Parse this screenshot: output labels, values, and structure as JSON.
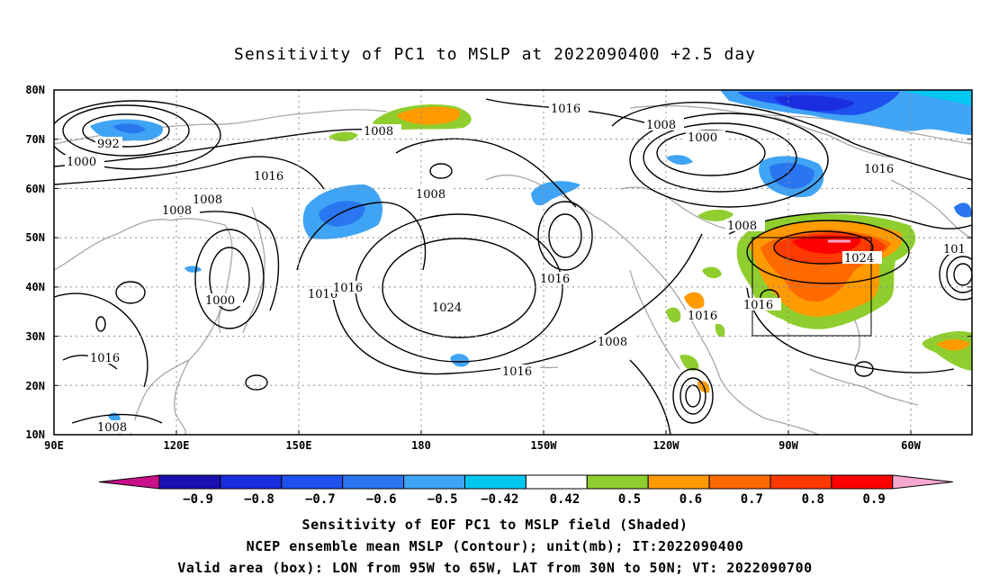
{
  "title": "Sensitivity of PC1 to MSLP at 2022090400 +2.5 day",
  "lat_labels": [
    "80N",
    "70N",
    "60N",
    "50N",
    "40N",
    "30N",
    "20N",
    "10N"
  ],
  "lon_labels": [
    "90E",
    "120E",
    "150E",
    "180",
    "150W",
    "120W",
    "90W",
    "60W"
  ],
  "contour_labels": [
    "992",
    "1000",
    "1008",
    "1008",
    "1016",
    "1008",
    "1016",
    "1000",
    "1016",
    "1016",
    "1024",
    "1008",
    "1000",
    "1016",
    "1008",
    "1016",
    "1024",
    "1016",
    "1016",
    "1016",
    "1008",
    "1008",
    "1016",
    "101"
  ],
  "colorbar": {
    "labels": [
      "-0.9",
      "-0.8",
      "-0.7",
      "-0.6",
      "-0.5",
      "-0.42",
      "0.42",
      "0.5",
      "0.6",
      "0.7",
      "0.8",
      "0.9"
    ],
    "colors": [
      "#1a0fb0",
      "#1a2ee0",
      "#1f50f0",
      "#2a76f0",
      "#3fa4f5",
      "#00c8f0",
      "#ffffff",
      "#8fce2e",
      "#ff9a00",
      "#ff6a00",
      "#ff3a00",
      "#ff0000"
    ],
    "under_color": "#c8108a",
    "over_color": "#f8a8d0"
  },
  "footer": [
    "Sensitivity of EOF PC1 to MSLP field (Shaded)",
    "NCEP ensemble mean MSLP (Contour); unit(mb); IT:2022090400",
    "Valid area (box): LON from 95W to 65W, LAT from 30N to 50N; VT: 2022090700"
  ]
}
